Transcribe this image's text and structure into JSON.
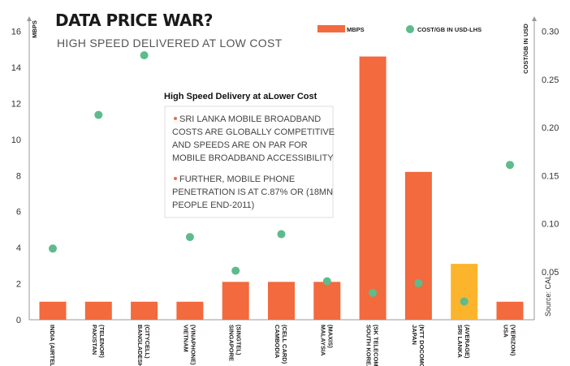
{
  "header": {
    "title": "DATA PRICE WAR?",
    "subtitle": "HIGH SPEED DELIVERED AT LOW COST"
  },
  "axes": {
    "left_unit": "MBPS",
    "right_unit": "COST/GB IN USD",
    "left_ticks": [
      "16",
      "14",
      "12",
      "10",
      "8",
      "6",
      "4",
      "2",
      "0"
    ],
    "right_ticks": [
      "0.30",
      "0.25",
      "0.20",
      "0.15",
      "0.10",
      "0.05"
    ]
  },
  "legend": {
    "bar_label": "MBPS",
    "dot_label": "COST/GB IN USD-LHS"
  },
  "annotation": {
    "title": "High Speed Delivery at aLower Cost",
    "bullet1": [
      "SRI LANKA MOBILE BROADBAND",
      "COSTS ARE GLOBALLY COMPETITIVE",
      "AND SPEEDS ARE ON PAR FOR",
      "MOBILE BROADBAND ACCESSIBILITY"
    ],
    "bullet2": [
      "FURTHER, MOBILE PHONE",
      "PENETRATION IS AT C.87% OR (18MN",
      "PEOPLE END-2011)"
    ]
  },
  "source": "Source: CAL",
  "colors": {
    "bar": "#f26a3d",
    "highlight_bar": "#fbb42c",
    "dot": "#5dbb8c",
    "axis": "#999999",
    "box_border": "#dddddd",
    "bullet": "#f26a3d"
  },
  "chart_data": {
    "type": "bar",
    "title": "DATA PRICE WAR?",
    "subtitle": "HIGH SPEED DELIVERED AT LOW COST",
    "categories": [
      [
        "INDIA (AIRTEL)"
      ],
      [
        "PAKISTAN",
        "(TELENOR)"
      ],
      [
        "BANGLADESH",
        "(CITYCELL)"
      ],
      [
        "VIETNAM",
        "(VINAPHONE)"
      ],
      [
        "SINGAPORE",
        "(SINGTEL)"
      ],
      [
        "CAMBODIA",
        "(CELL CARD)"
      ],
      [
        "MALAYSIA",
        "(MAXIS)"
      ],
      [
        "SOUTH KOREA",
        "(SK TELECOM)"
      ],
      [
        "JAPAN",
        "(NTT DOCOMO)"
      ],
      [
        "SRI LANKA",
        "(AVERAGE)"
      ],
      [
        "USA",
        "(VERIZON)"
      ]
    ],
    "highlight_index": 9,
    "series": [
      {
        "name": "MBPS",
        "axis": "left",
        "kind": "bar",
        "values": [
          1,
          1,
          1,
          1,
          2.1,
          2.1,
          2.1,
          14.6,
          8.2,
          3.1,
          1
        ]
      },
      {
        "name": "COST/GB IN USD-LHS",
        "axis": "right",
        "kind": "scatter",
        "values": [
          0.074,
          0.213,
          0.275,
          0.086,
          0.051,
          0.089,
          0.04,
          0.028,
          0.038,
          0.019,
          0.161
        ]
      }
    ],
    "ylabel": "MBPS",
    "y2label": "COST/GB IN USD",
    "ylim": [
      0,
      16
    ],
    "y2lim": [
      0,
      0.3
    ],
    "y2_tick_values": [
      0.3,
      0.25,
      0.2,
      0.15,
      0.1,
      0.05
    ],
    "legend_position": "top-right",
    "grid": false
  }
}
